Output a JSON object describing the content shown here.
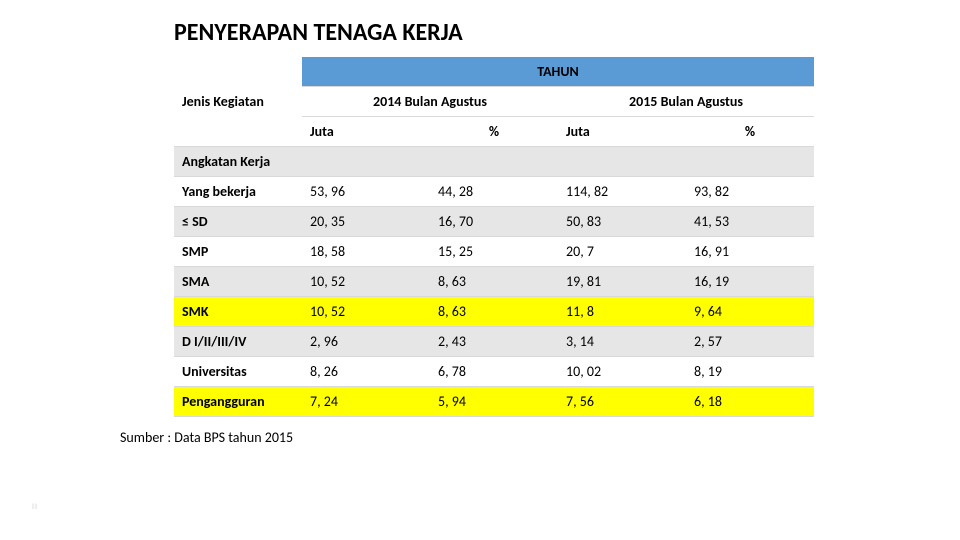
{
  "title": "PENYERAPAN TENAGA KERJA",
  "source": "Sumber : Data BPS tahun 2015",
  "pagemark": "II",
  "colors": {
    "blue": "#5b9bd5",
    "yellow": "#ffff00",
    "band_gray": "#e6e6e6",
    "header_dark": "#3a3a3a",
    "row_border": "#d9d9d9"
  },
  "table": {
    "row_header_label": "Jenis Kegiatan",
    "top_header": "TAHUN",
    "year_headers": [
      "2014 Bulan Agustus",
      "2015 Bulan Agustus"
    ],
    "sub_headers": [
      "Juta",
      "%",
      "Juta",
      "%"
    ],
    "rows": [
      {
        "label": "Angkatan Kerja",
        "values": [
          "",
          "",
          "",
          ""
        ],
        "highlight": "gray"
      },
      {
        "label": "Yang bekerja",
        "values": [
          "53, 96",
          "44, 28",
          "114, 82",
          "93, 82"
        ],
        "highlight": "none"
      },
      {
        "label": "≤ SD",
        "values": [
          "20, 35",
          "16, 70",
          "50, 83",
          "41, 53"
        ],
        "highlight": "gray"
      },
      {
        "label": "SMP",
        "values": [
          "18, 58",
          "15, 25",
          "20, 7",
          "16, 91"
        ],
        "highlight": "none"
      },
      {
        "label": "SMA",
        "values": [
          "10, 52",
          "8, 63",
          "19, 81",
          "16, 19"
        ],
        "highlight": "gray"
      },
      {
        "label": "SMK",
        "values": [
          "10, 52",
          "8, 63",
          "11, 8",
          "9, 64"
        ],
        "highlight": "yellow"
      },
      {
        "label": "D I/II/III/IV",
        "values": [
          "2, 96",
          "2, 43",
          "3, 14",
          "2, 57"
        ],
        "highlight": "gray"
      },
      {
        "label": "Universitas",
        "values": [
          "8, 26",
          "6, 78",
          "10, 02",
          "8, 19"
        ],
        "highlight": "none"
      },
      {
        "label": "Pengangguran",
        "values": [
          "7, 24",
          "5, 94",
          "7, 56",
          "6, 18"
        ],
        "highlight": "yellow"
      }
    ]
  }
}
